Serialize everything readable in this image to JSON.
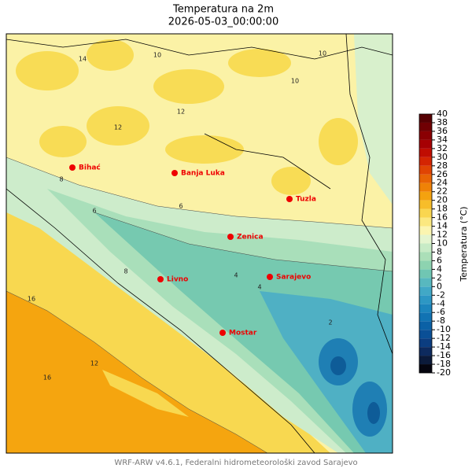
{
  "title": "Temperatura na 2m",
  "subtitle": "2026-05-03_00:00:00",
  "cities": [
    "Bihać",
    "Banja Luka",
    "Tuzla",
    "Zenica",
    "Livno",
    "Sarajevo",
    "Mostar"
  ],
  "contour_labels": [
    12,
    10,
    14,
    10,
    12,
    10,
    8,
    6,
    6,
    4,
    16,
    16,
    12,
    4,
    2,
    8
  ],
  "colorbar": {
    "label": "Temperatura (°C)",
    "lim": [
      -20,
      40
    ],
    "ticks": [
      -20,
      -18,
      -16,
      -14,
      -12,
      -10,
      -8,
      -6,
      -4,
      -2,
      0,
      2,
      4,
      6,
      8,
      10,
      12,
      14,
      16,
      18,
      20,
      22,
      24,
      26,
      28,
      30,
      32,
      34,
      36,
      38,
      40
    ],
    "colors": [
      "#05050f",
      "#0b1a3a",
      "#0d2a5e",
      "#0b3d80",
      "#0a4f96",
      "#0b61a6",
      "#1173b3",
      "#1c85bd",
      "#2d97c4",
      "#41a8c6",
      "#58b8bf",
      "#70c6b3",
      "#8dd3b0",
      "#abdfb8",
      "#c7ebc6",
      "#e4f5cf",
      "#fbf5b0",
      "#fbe880",
      "#f9d650",
      "#f7bd2a",
      "#f4a20f",
      "#ef8207",
      "#e86404",
      "#e04403",
      "#d42502",
      "#c00d02",
      "#a60003",
      "#8a0003",
      "#700003",
      "#560003"
    ]
  },
  "footer": "WRF-ARW v4.6.1, Federalni hidrometeorološki zavod Sarajevo"
}
